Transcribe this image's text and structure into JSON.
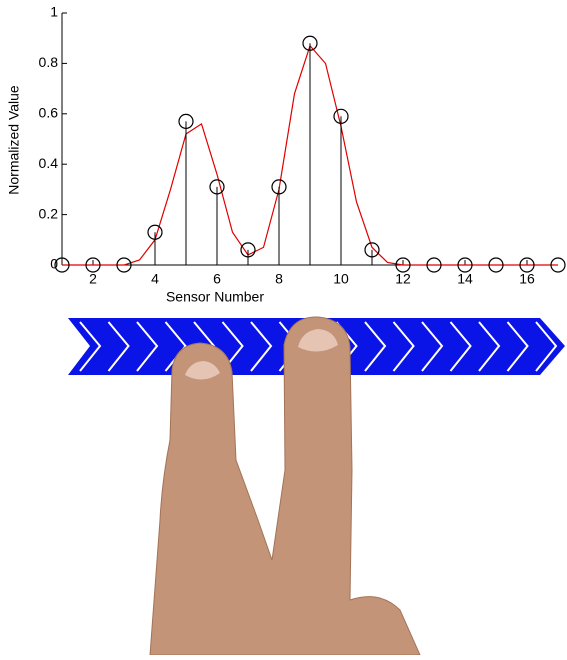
{
  "chart_data": {
    "type": "stem",
    "xlabel": "Sensor Number",
    "ylabel": "Normalized Value",
    "xlim": [
      1,
      17
    ],
    "ylim": [
      0,
      1
    ],
    "xticks": [
      2,
      4,
      6,
      8,
      10,
      12,
      14,
      16
    ],
    "yticks": [
      0,
      0.2,
      0.4,
      0.6,
      0.8,
      1
    ],
    "series": [
      {
        "color": "#000000",
        "x": [
          1,
          2,
          3,
          4,
          5,
          6,
          7,
          8,
          9,
          10,
          11,
          12,
          13,
          14,
          15,
          16,
          17
        ],
        "values": [
          0,
          0,
          0,
          0.13,
          0.57,
          0.31,
          0.06,
          0.31,
          0.88,
          0.59,
          0.06,
          0,
          0,
          0,
          0,
          0,
          0
        ]
      },
      {
        "color": "#e00000",
        "x": [
          1,
          2,
          3,
          3.5,
          4,
          4.5,
          5,
          5.5,
          6,
          6.5,
          7,
          7.5,
          8,
          8.5,
          9,
          9.5,
          10,
          10.5,
          11,
          11.5,
          12,
          13,
          14,
          15,
          16,
          17
        ],
        "values": [
          0,
          0,
          0,
          0.02,
          0.1,
          0.3,
          0.52,
          0.56,
          0.36,
          0.13,
          0.04,
          0.07,
          0.3,
          0.68,
          0.87,
          0.8,
          0.55,
          0.25,
          0.07,
          0.01,
          0,
          0,
          0,
          0,
          0,
          0
        ]
      }
    ]
  }
}
